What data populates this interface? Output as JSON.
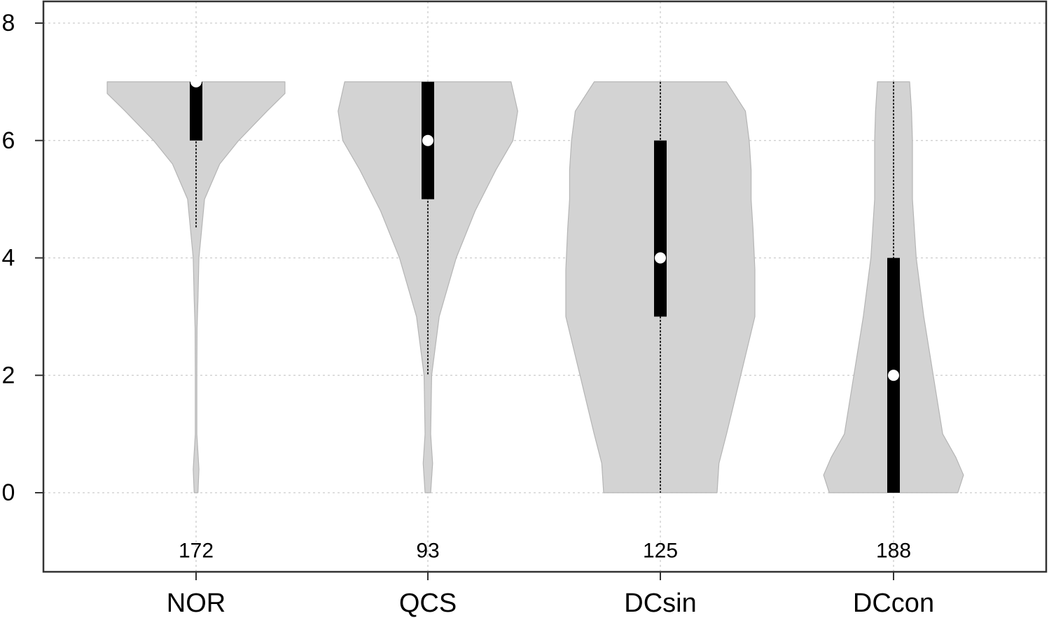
{
  "chart_data": {
    "type": "violin",
    "categories": [
      "NOR",
      "QCS",
      "DCsin",
      "DCcon"
    ],
    "counts": [
      "172",
      "93",
      "125",
      "188"
    ],
    "ylim": [
      -1.35,
      8.4
    ],
    "y_ticks": [
      0,
      2,
      4,
      6,
      8
    ],
    "grid": true,
    "colors": {
      "violin_fill": "#d3d3d3",
      "violin_stroke": "#b5b5b5",
      "box": "#000000",
      "median": "#ffffff",
      "grid": "#cccccc"
    },
    "series": [
      {
        "category": "NOR",
        "min": 0,
        "q1": 6,
        "median": 7,
        "q3": 7,
        "max": 7,
        "whisker_low": 4.5,
        "density": [
          [
            0,
            0.02
          ],
          [
            0.4,
            0.03
          ],
          [
            1,
            0.008
          ],
          [
            2,
            0.008
          ],
          [
            2.8,
            0.01
          ],
          [
            3.3,
            0.02
          ],
          [
            4,
            0.03
          ],
          [
            5,
            0.09
          ],
          [
            5.6,
            0.25
          ],
          [
            6,
            0.45
          ],
          [
            6.5,
            0.75
          ],
          [
            6.8,
            0.94
          ],
          [
            7,
            0.94
          ]
        ]
      },
      {
        "category": "QCS",
        "min": 0,
        "q1": 5,
        "median": 6,
        "q3": 7,
        "max": 7,
        "whisker_low": 2,
        "density": [
          [
            0,
            0.03
          ],
          [
            0.5,
            0.05
          ],
          [
            1,
            0.03
          ],
          [
            2,
            0.04
          ],
          [
            3,
            0.12
          ],
          [
            4,
            0.3
          ],
          [
            4.8,
            0.5
          ],
          [
            5.5,
            0.72
          ],
          [
            6,
            0.9
          ],
          [
            6.5,
            0.95
          ],
          [
            7,
            0.88
          ]
        ]
      },
      {
        "category": "DCsin",
        "min": 0,
        "q1": 3,
        "median": 4,
        "q3": 6,
        "max": 7,
        "whisker_low": 0,
        "density": [
          [
            0,
            0.6
          ],
          [
            0.5,
            0.62
          ],
          [
            1,
            0.7
          ],
          [
            2,
            0.85
          ],
          [
            3,
            1.0
          ],
          [
            3.8,
            1.0
          ],
          [
            4.5,
            0.98
          ],
          [
            5,
            0.96
          ],
          [
            5.5,
            0.96
          ],
          [
            6,
            0.94
          ],
          [
            6.5,
            0.9
          ],
          [
            7,
            0.7
          ]
        ]
      },
      {
        "category": "DCcon",
        "min": 0,
        "q1": 0,
        "median": 2,
        "q3": 4,
        "max": 7,
        "whisker_low": 0,
        "density": [
          [
            0,
            0.68
          ],
          [
            0.3,
            0.74
          ],
          [
            0.6,
            0.66
          ],
          [
            1,
            0.52
          ],
          [
            2,
            0.42
          ],
          [
            3,
            0.32
          ],
          [
            4,
            0.24
          ],
          [
            5,
            0.2
          ],
          [
            6,
            0.2
          ],
          [
            6.5,
            0.19
          ],
          [
            7,
            0.17
          ]
        ]
      }
    ]
  }
}
